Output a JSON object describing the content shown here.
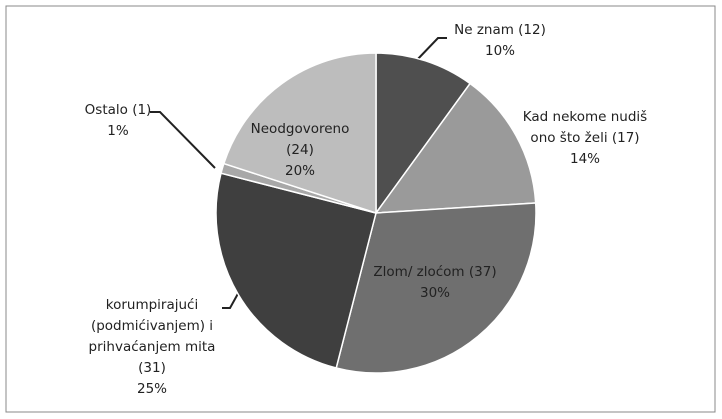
{
  "chart_data": {
    "type": "pie",
    "categories": [
      "Ne znam (12)",
      "Kad nekome nudiš\nono što želi (17)",
      "Zlom/ zloćom (37)",
      "korumpirajući\n(podmićivanjem) i\nprihvaćanjem mita\n(31)",
      "Ostalo (1)",
      "Neodgovoreno\n(24)"
    ],
    "values": [
      10,
      14,
      30,
      25,
      1,
      20
    ],
    "value_labels": [
      "10%",
      "14%",
      "30%",
      "25%",
      "1%",
      "20%"
    ],
    "colors": [
      "#4f4f4f",
      "#9a9a9a",
      "#6f6f6f",
      "#3f3f3f",
      "#a8a8a8",
      "#bdbdbd"
    ]
  }
}
